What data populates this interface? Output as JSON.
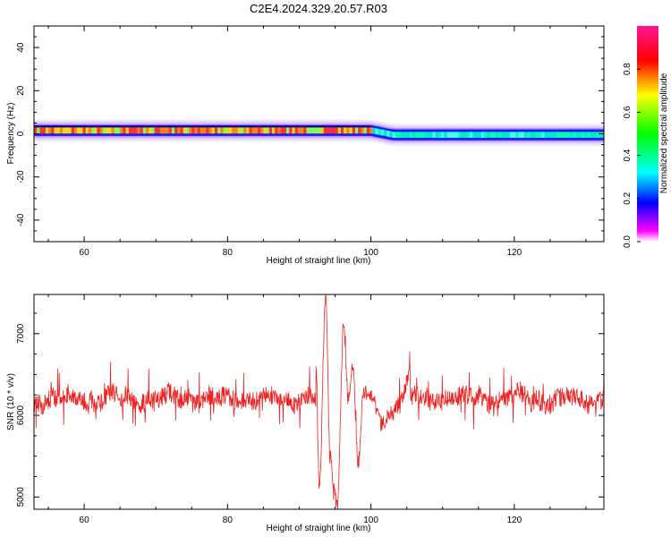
{
  "title": "C2E4.2024.329.20.57.R03",
  "colors": {
    "trace": "#ee2222",
    "frame": "#000000",
    "background": "#ffffff"
  },
  "chart_data": [
    {
      "type": "heatmap",
      "xlabel": "Height of straight line (km)",
      "ylabel": "Frequency (Hz)",
      "xlim": [
        53,
        132.5
      ],
      "ylim": [
        -50,
        50
      ],
      "x_ticks": [
        "60",
        "80",
        "100",
        "120"
      ],
      "y_ticks": [
        "40",
        "20",
        "0",
        "-20",
        "-40"
      ],
      "band_center_hz": [
        {
          "x": 53,
          "center": 1.5
        },
        {
          "x": 100,
          "center": 1.5
        },
        {
          "x": 103,
          "center": -0.5
        },
        {
          "x": 132.5,
          "center": -0.5
        }
      ],
      "band_halfwidth_hz": 2.5,
      "colorbar": {
        "label": "Normalized spectral amplitude",
        "range": [
          0,
          1
        ],
        "ticks": [
          "0.0",
          "0.2",
          "0.4",
          "0.6",
          "0.8"
        ]
      }
    },
    {
      "type": "line",
      "xlabel": "Height of straight line (km)",
      "ylabel": "SNR (10 * v/v)",
      "xlim": [
        53,
        132.5
      ],
      "ylim": [
        4850,
        7480
      ],
      "x_ticks": [
        "60",
        "80",
        "100",
        "120"
      ],
      "y_ticks": [
        "5000",
        "6000",
        "7000"
      ],
      "series": [
        {
          "baseline": 6200,
          "noise_amplitude": 120,
          "oscillation_peaks": [
            {
              "x": 92.3,
              "y": 6700
            },
            {
              "x": 92.8,
              "y": 5150
            },
            {
              "x": 93.7,
              "y": 7450
            },
            {
              "x": 94.3,
              "y": 5500
            },
            {
              "x": 94.8,
              "y": 5200
            },
            {
              "x": 95.3,
              "y": 4900
            },
            {
              "x": 96.2,
              "y": 7100
            },
            {
              "x": 96.8,
              "y": 6200
            },
            {
              "x": 97.5,
              "y": 6600
            },
            {
              "x": 98.2,
              "y": 5400
            },
            {
              "x": 99.0,
              "y": 6300
            },
            {
              "x": 100.0,
              "y": 6250
            },
            {
              "x": 101.5,
              "y": 5900
            },
            {
              "x": 102.8,
              "y": 6000
            },
            {
              "x": 104.0,
              "y": 6150
            },
            {
              "x": 105.5,
              "y": 6500
            }
          ]
        }
      ]
    }
  ]
}
